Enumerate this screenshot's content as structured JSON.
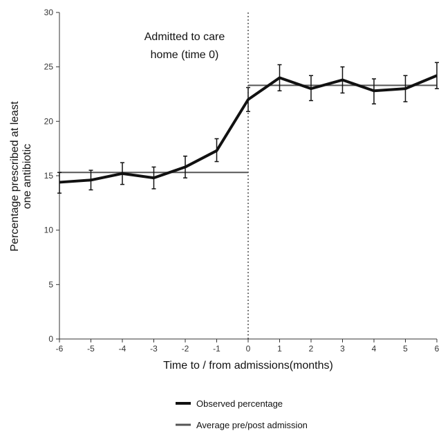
{
  "chart_data": {
    "type": "line",
    "xlabel": "Time to / from admissions(months)",
    "ylabel_lines": [
      "Percentage prescribed at least",
      "one antibiotic"
    ],
    "xlim": [
      -6,
      6
    ],
    "ylim": [
      0,
      30
    ],
    "x_ticks": [
      -6,
      -5,
      -4,
      -3,
      -2,
      -1,
      0,
      1,
      2,
      3,
      4,
      5,
      6
    ],
    "y_ticks": [
      0,
      5,
      10,
      15,
      20,
      25,
      30
    ],
    "grid": false,
    "annotation_lines": [
      "Admitted to care",
      "home (time 0)"
    ],
    "event_x": 0,
    "series": [
      {
        "name": "Observed percentage",
        "color": "#111111",
        "x": [
          -6,
          -5,
          -4,
          -3,
          -2,
          -1,
          0,
          1,
          2,
          3,
          4,
          5,
          6
        ],
        "y": [
          14.4,
          14.6,
          15.2,
          14.8,
          15.8,
          17.3,
          22.0,
          24.0,
          23.0,
          23.8,
          22.8,
          23.0,
          24.2
        ],
        "y_low": [
          13.4,
          13.7,
          14.2,
          13.8,
          14.8,
          16.3,
          20.9,
          22.8,
          21.9,
          22.6,
          21.6,
          21.8,
          23.0
        ],
        "y_high": [
          15.3,
          15.5,
          16.2,
          15.8,
          16.8,
          18.4,
          23.1,
          25.2,
          24.2,
          25.0,
          23.9,
          24.2,
          25.4
        ]
      },
      {
        "name": "Average pre/post admission",
        "color": "#555555",
        "segments": [
          {
            "x": [
              -6,
              0
            ],
            "y": 15.3
          },
          {
            "x": [
              0,
              6
            ],
            "y": 23.3
          }
        ]
      }
    ],
    "legend_position": "bottom"
  }
}
